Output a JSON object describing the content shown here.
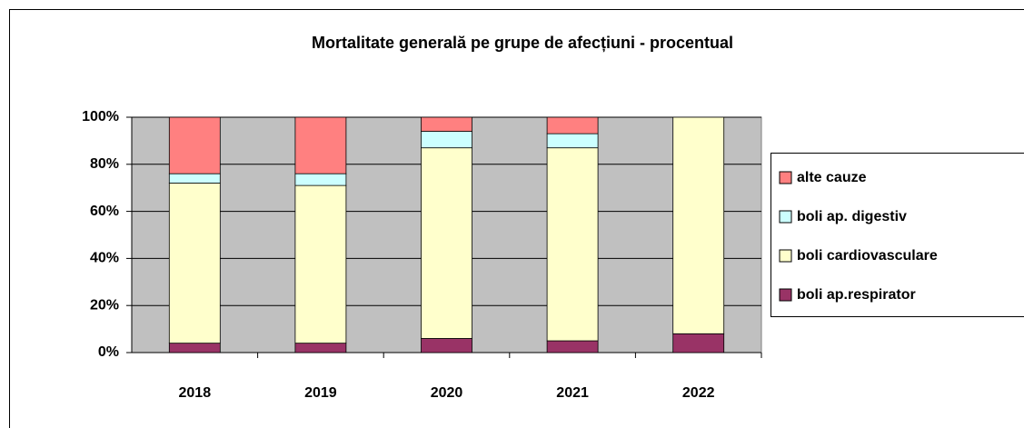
{
  "chart_data": {
    "type": "stacked_bar",
    "title": "Mortalitate generală pe grupe de afecțiuni - procentual",
    "categories": [
      "2018",
      "2019",
      "2020",
      "2021",
      "2022"
    ],
    "series": [
      {
        "name": "boli ap.respirator",
        "color": "#993366",
        "values": [
          4,
          4,
          6,
          5,
          8
        ]
      },
      {
        "name": "boli cardiovasculare",
        "color": "#ffffcc",
        "values": [
          68,
          67,
          81,
          82,
          92
        ]
      },
      {
        "name": "boli ap. digestiv",
        "color": "#ccffff",
        "values": [
          4,
          5,
          7,
          6,
          0
        ]
      },
      {
        "name": "alte cauze",
        "color": "#ff8080",
        "values": [
          24,
          24,
          6,
          7,
          0
        ]
      }
    ],
    "ylim": [
      0,
      100
    ],
    "yticks": [
      {
        "value": 0,
        "label": "0%"
      },
      {
        "value": 20,
        "label": "20%"
      },
      {
        "value": 40,
        "label": "40%"
      },
      {
        "value": 60,
        "label": "60%"
      },
      {
        "value": 80,
        "label": "80%"
      },
      {
        "value": 100,
        "label": "100%"
      }
    ],
    "grid": true,
    "legend": "right",
    "plot_background": "#c0c0c0"
  }
}
